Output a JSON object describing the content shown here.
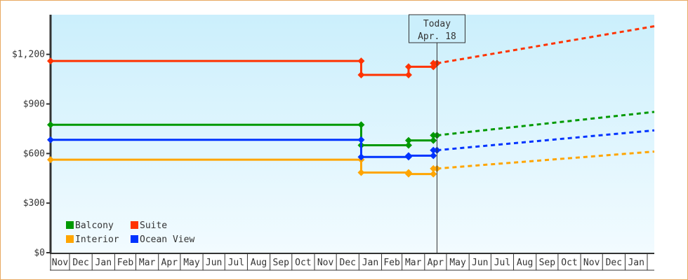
{
  "chart_data": {
    "type": "line",
    "title": "",
    "xlabel": "",
    "ylabel": "",
    "xlim": [
      "2019-11-05",
      "2022-02-10"
    ],
    "ylim": [
      0,
      1440
    ],
    "y_ticks": [
      0,
      300,
      600,
      900,
      1200
    ],
    "y_tick_labels": [
      "$0",
      "$300",
      "$600",
      "$900",
      "$1,200"
    ],
    "x_tick_labels": [
      "Nov",
      "Dec",
      "Jan",
      "Feb",
      "Mar",
      "Apr",
      "May",
      "Jun",
      "Jul",
      "Aug",
      "Sep",
      "Oct",
      "Nov",
      "Dec",
      "Jan",
      "Feb",
      "Mar",
      "Apr",
      "May",
      "Jun",
      "Jul",
      "Aug",
      "Sep",
      "Oct",
      "Nov",
      "Dec",
      "Jan"
    ],
    "x_tick_dates": [
      "2019-11-01",
      "2019-12-01",
      "2020-01-01",
      "2020-02-01",
      "2020-03-01",
      "2020-04-01",
      "2020-05-01",
      "2020-06-01",
      "2020-07-01",
      "2020-08-01",
      "2020-09-01",
      "2020-10-01",
      "2020-11-01",
      "2020-12-01",
      "2021-01-01",
      "2021-02-01",
      "2021-03-01",
      "2021-04-01",
      "2021-05-01",
      "2021-06-01",
      "2021-07-01",
      "2021-08-01",
      "2021-09-01",
      "2021-10-01",
      "2021-11-01",
      "2021-12-01",
      "2022-01-01"
    ],
    "grid": false,
    "legend_position": "bottom-left",
    "today": {
      "label": "Today",
      "date_label": "Apr. 18",
      "date": "2021-04-18"
    },
    "series": [
      {
        "name": "Balcony",
        "color": "#009900",
        "history": [
          [
            "2019-11-05",
            774
          ],
          [
            "2021-01-04",
            650
          ],
          [
            "2021-03-10",
            679
          ],
          [
            "2021-04-13",
            710
          ],
          [
            "2021-04-18",
            710
          ]
        ],
        "forecast": [
          [
            "2021-04-18",
            710
          ],
          [
            "2022-02-10",
            852
          ]
        ]
      },
      {
        "name": "Suite",
        "color": "#ff3300",
        "history": [
          [
            "2019-11-05",
            1160
          ],
          [
            "2021-01-04",
            1076
          ],
          [
            "2021-03-10",
            1125
          ],
          [
            "2021-04-13",
            1146
          ],
          [
            "2021-04-18",
            1146
          ]
        ],
        "forecast": [
          [
            "2021-04-18",
            1146
          ],
          [
            "2022-02-10",
            1370
          ]
        ]
      },
      {
        "name": "Interior",
        "color": "#ffa500",
        "history": [
          [
            "2019-11-05",
            563
          ],
          [
            "2021-01-04",
            485
          ],
          [
            "2021-03-10",
            476
          ],
          [
            "2021-04-13",
            509
          ],
          [
            "2021-04-18",
            509
          ]
        ],
        "forecast": [
          [
            "2021-04-18",
            509
          ],
          [
            "2022-02-10",
            612
          ]
        ]
      },
      {
        "name": "Ocean View",
        "color": "#0033ff",
        "history": [
          [
            "2019-11-05",
            683
          ],
          [
            "2021-01-04",
            579
          ],
          [
            "2021-03-10",
            587
          ],
          [
            "2021-04-13",
            620
          ],
          [
            "2021-04-18",
            620
          ]
        ],
        "forecast": [
          [
            "2021-04-18",
            620
          ],
          [
            "2022-02-10",
            740
          ]
        ]
      }
    ]
  }
}
